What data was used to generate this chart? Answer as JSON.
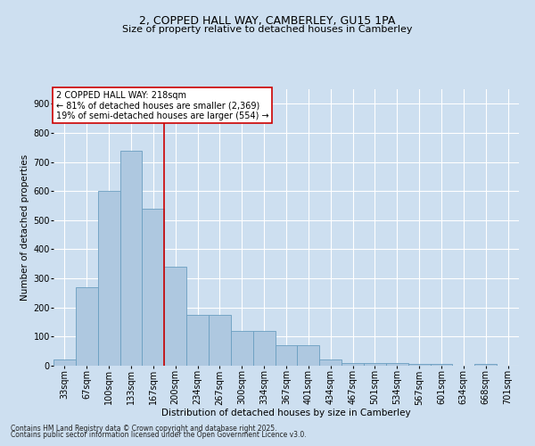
{
  "title_line1": "2, COPPED HALL WAY, CAMBERLEY, GU15 1PA",
  "title_line2": "Size of property relative to detached houses in Camberley",
  "xlabel": "Distribution of detached houses by size in Camberley",
  "ylabel": "Number of detached properties",
  "fig_background_color": "#cddff0",
  "plot_background_color": "#cddff0",
  "bar_color": "#aec8e0",
  "bar_edge_color": "#6a9ec0",
  "grid_color": "#ffffff",
  "categories": [
    "33sqm",
    "67sqm",
    "100sqm",
    "133sqm",
    "167sqm",
    "200sqm",
    "234sqm",
    "267sqm",
    "300sqm",
    "334sqm",
    "367sqm",
    "401sqm",
    "434sqm",
    "467sqm",
    "501sqm",
    "534sqm",
    "567sqm",
    "601sqm",
    "634sqm",
    "668sqm",
    "701sqm"
  ],
  "values": [
    20,
    270,
    600,
    740,
    540,
    340,
    175,
    175,
    120,
    120,
    70,
    70,
    20,
    10,
    10,
    10,
    5,
    5,
    0,
    5,
    0
  ],
  "ylim": [
    0,
    950
  ],
  "yticks": [
    0,
    100,
    200,
    300,
    400,
    500,
    600,
    700,
    800,
    900
  ],
  "vline_index": 5,
  "vline_color": "#cc0000",
  "annotation_text": "2 COPPED HALL WAY: 218sqm\n← 81% of detached houses are smaller (2,369)\n19% of semi-detached houses are larger (554) →",
  "annotation_box_facecolor": "#ffffff",
  "annotation_box_edgecolor": "#cc0000",
  "footnote_line1": "Contains HM Land Registry data © Crown copyright and database right 2025.",
  "footnote_line2": "Contains public sector information licensed under the Open Government Licence v3.0.",
  "title_fontsize": 9,
  "subtitle_fontsize": 8,
  "axis_label_fontsize": 7.5,
  "tick_fontsize": 7,
  "annotation_fontsize": 7,
  "footnote_fontsize": 5.5
}
